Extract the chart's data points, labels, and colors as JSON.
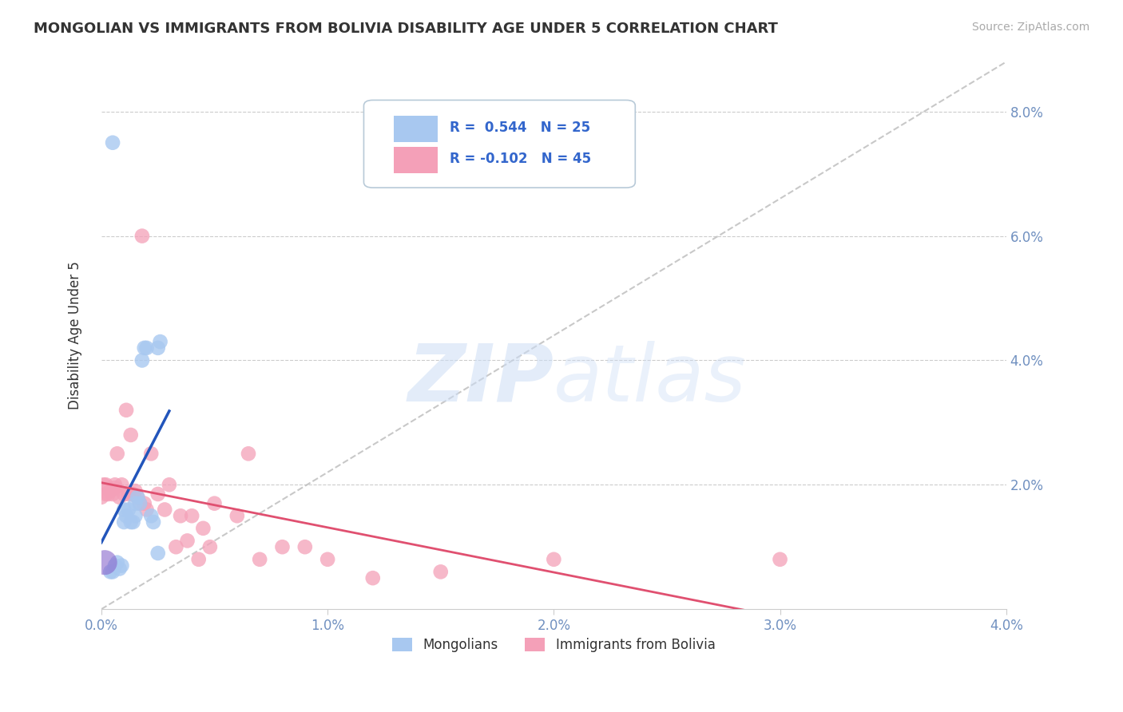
{
  "title": "MONGOLIAN VS IMMIGRANTS FROM BOLIVIA DISABILITY AGE UNDER 5 CORRELATION CHART",
  "source": "Source: ZipAtlas.com",
  "ylabel": "Disability Age Under 5",
  "legend_mongolian": "Mongolians",
  "legend_bolivia": "Immigrants from Bolivia",
  "r_mongolian": 0.544,
  "n_mongolian": 25,
  "r_bolivia": -0.102,
  "n_bolivia": 45,
  "color_mongolian": "#A8C8F0",
  "color_bolivia": "#F4A0B8",
  "trendline_mongolian": "#2255BB",
  "trendline_bolivia": "#E05070",
  "refline_color": "#BBBBBB",
  "xlim": [
    0.0,
    0.04
  ],
  "ylim": [
    0.0,
    0.088
  ],
  "xticks": [
    0.0,
    0.01,
    0.02,
    0.03,
    0.04
  ],
  "yticks_right": [
    0.02,
    0.04,
    0.06,
    0.08
  ],
  "mongolian_x": [
    0.0004,
    0.0005,
    0.0006,
    0.0007,
    0.0008,
    0.0009,
    0.001,
    0.001,
    0.0011,
    0.0012,
    0.0013,
    0.0014,
    0.0015,
    0.0015,
    0.0016,
    0.0017,
    0.0018,
    0.0019,
    0.002,
    0.0022,
    0.0023,
    0.0025,
    0.0025,
    0.0026,
    0.0005
  ],
  "mongolian_y": [
    0.006,
    0.006,
    0.007,
    0.0075,
    0.0065,
    0.007,
    0.014,
    0.016,
    0.015,
    0.016,
    0.014,
    0.014,
    0.015,
    0.017,
    0.018,
    0.017,
    0.04,
    0.042,
    0.042,
    0.015,
    0.014,
    0.009,
    0.042,
    0.043,
    0.075
  ],
  "bolivia_x": [
    0.0,
    0.0001,
    0.0002,
    0.0002,
    0.0003,
    0.0004,
    0.0005,
    0.0006,
    0.0006,
    0.0007,
    0.0008,
    0.0009,
    0.001,
    0.0011,
    0.0012,
    0.0013,
    0.0014,
    0.0015,
    0.0016,
    0.0017,
    0.0018,
    0.0019,
    0.002,
    0.0022,
    0.0025,
    0.0028,
    0.003,
    0.0033,
    0.0035,
    0.0038,
    0.004,
    0.0043,
    0.0045,
    0.0048,
    0.005,
    0.006,
    0.0065,
    0.007,
    0.008,
    0.009,
    0.01,
    0.012,
    0.015,
    0.02,
    0.03
  ],
  "bolivia_y": [
    0.018,
    0.02,
    0.0185,
    0.02,
    0.0185,
    0.019,
    0.0185,
    0.02,
    0.0195,
    0.025,
    0.018,
    0.02,
    0.0185,
    0.032,
    0.0185,
    0.028,
    0.0185,
    0.019,
    0.018,
    0.017,
    0.06,
    0.017,
    0.016,
    0.025,
    0.0185,
    0.016,
    0.02,
    0.01,
    0.015,
    0.011,
    0.015,
    0.008,
    0.013,
    0.01,
    0.017,
    0.015,
    0.025,
    0.008,
    0.01,
    0.01,
    0.008,
    0.005,
    0.006,
    0.008,
    0.008
  ],
  "watermark_zip": "ZIP",
  "watermark_atlas": "atlas",
  "background_color": "#FFFFFF",
  "grid_color": "#CCCCCC",
  "tick_color": "#7090C0",
  "title_color": "#333333",
  "source_color": "#AAAAAA"
}
